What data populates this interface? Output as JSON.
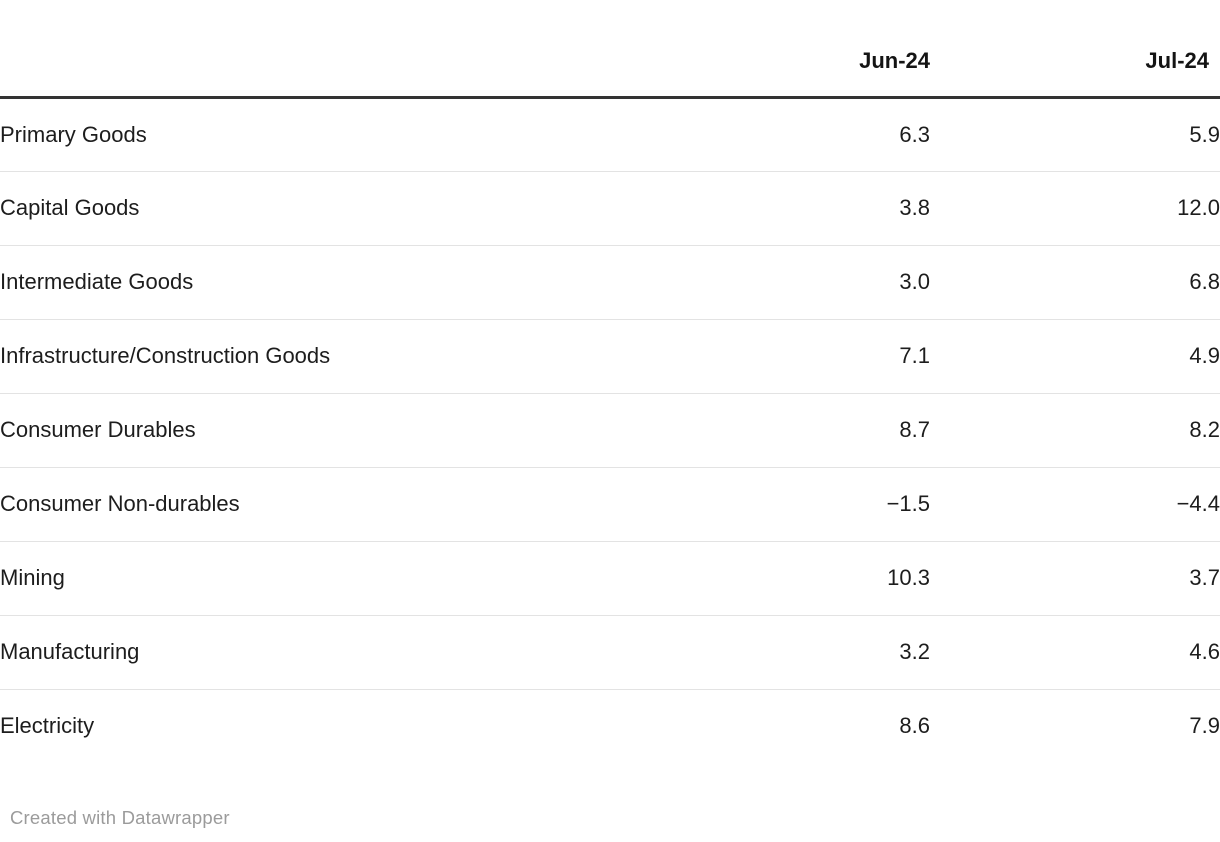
{
  "table": {
    "columns": {
      "label": "",
      "jun": "Jun-24",
      "jul": "Jul-24"
    },
    "rows": [
      {
        "label": "Primary Goods",
        "jun": "6.3",
        "jul": "5.9"
      },
      {
        "label": "Capital Goods",
        "jun": "3.8",
        "jul": "12.0"
      },
      {
        "label": "Intermediate Goods",
        "jun": "3.0",
        "jul": "6.8"
      },
      {
        "label": "Infrastructure/Construction Goods",
        "jun": "7.1",
        "jul": "4.9"
      },
      {
        "label": "Consumer Durables",
        "jun": "8.7",
        "jul": "8.2"
      },
      {
        "label": "Consumer Non-durables",
        "jun": "−1.5",
        "jul": "−4.4"
      },
      {
        "label": "Mining",
        "jun": "10.3",
        "jul": "3.7"
      },
      {
        "label": "Manufacturing",
        "jun": "3.2",
        "jul": "4.6"
      },
      {
        "label": "Electricity",
        "jun": "8.6",
        "jul": "7.9"
      }
    ]
  },
  "footer": {
    "credit": "Created with Datawrapper"
  },
  "colors": {
    "header_rule": "#333333",
    "row_separator": "#e3e3e3",
    "body_text": "#1d1d1d",
    "credit_text": "#9b9b9b",
    "background": "#ffffff"
  },
  "chart_data": {
    "type": "table",
    "categories": [
      "Primary Goods",
      "Capital Goods",
      "Intermediate Goods",
      "Infrastructure/Construction Goods",
      "Consumer Durables",
      "Consumer Non-durables",
      "Mining",
      "Manufacturing",
      "Electricity"
    ],
    "series": [
      {
        "name": "Jun-24",
        "values": [
          6.3,
          3.8,
          3.0,
          7.1,
          8.7,
          -1.5,
          10.3,
          3.2,
          8.6
        ]
      },
      {
        "name": "Jul-24",
        "values": [
          5.9,
          12.0,
          6.8,
          4.9,
          8.2,
          -4.4,
          3.7,
          4.6,
          7.9
        ]
      }
    ],
    "title": "",
    "xlabel": "",
    "ylabel": ""
  }
}
